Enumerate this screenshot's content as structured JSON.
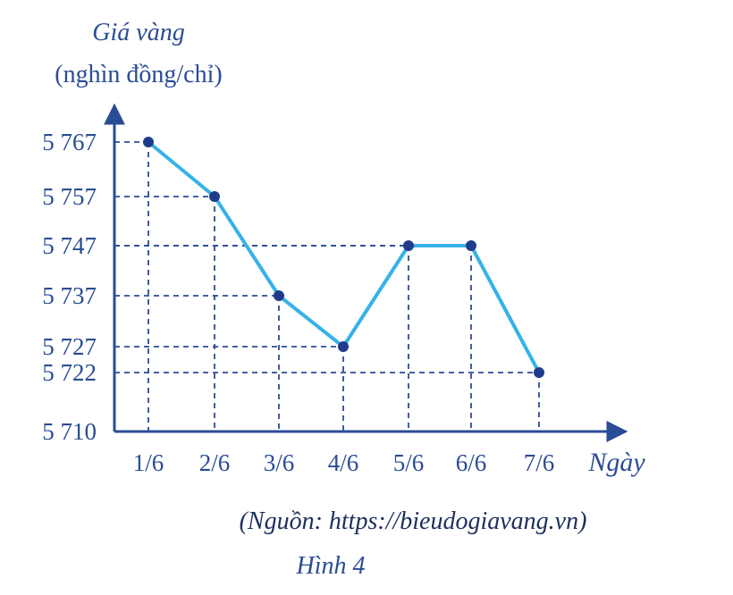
{
  "chart_data": {
    "type": "line",
    "ylabel_line1": "Giá vàng",
    "ylabel_line2": "(nghìn đồng/chỉ)",
    "xlabel": "Ngày",
    "categories": [
      "1/6",
      "2/6",
      "3/6",
      "4/6",
      "5/6",
      "6/6",
      "7/6"
    ],
    "values": [
      5767,
      5757,
      5737,
      5727,
      5747,
      5747,
      5722
    ],
    "yticks": [
      5767,
      5757,
      5747,
      5737,
      5727,
      5722,
      5710
    ],
    "ytick_labels": [
      "5 767",
      "5 757",
      "5 747",
      "5 737",
      "5 727",
      "5 722",
      "5 710"
    ],
    "y_origin": 5710,
    "gridlines": "dashed guides to each point",
    "line_color": "#35b2e8",
    "axis_color": "#2a4c95"
  },
  "source_note": "(Nguồn: https://bieudogiavang.vn)",
  "figure_caption": "Hình 4"
}
